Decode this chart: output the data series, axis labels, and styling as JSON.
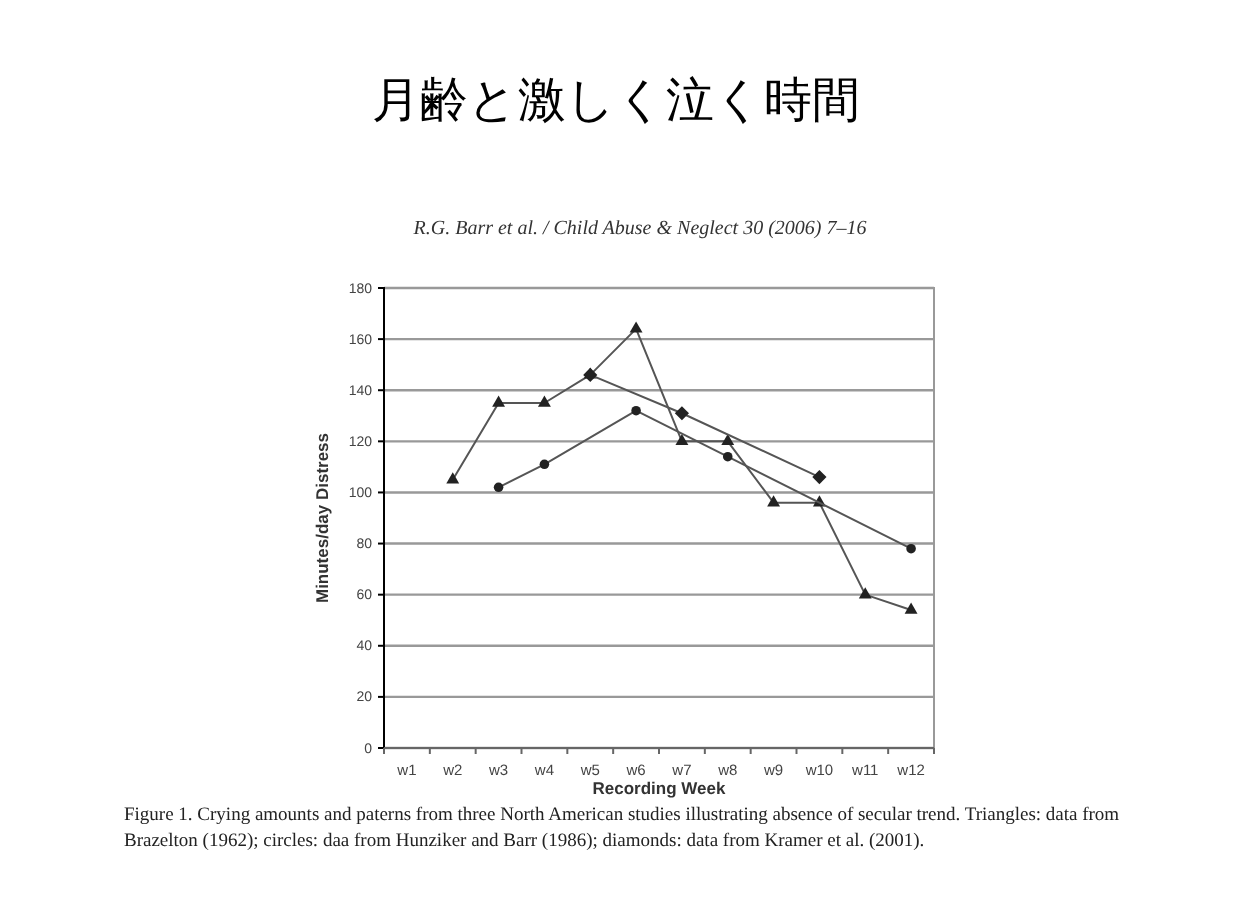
{
  "chart_data": {
    "type": "line",
    "title": "月齢と激しく泣く時間",
    "subtitle": "R.G. Barr et al. / Child Abuse & Neglect 30 (2006) 7–16",
    "xlabel": "Recording Week",
    "ylabel": "Minutes/day Distress",
    "categories": [
      "w1",
      "w2",
      "w3",
      "w4",
      "w5",
      "w6",
      "w7",
      "w8",
      "w9",
      "w10",
      "w11",
      "w12"
    ],
    "series": [
      {
        "color": "#555555",
        "marker": "triangle",
        "values": [
          null,
          105,
          135,
          135,
          146,
          164,
          120,
          120,
          96,
          96,
          60,
          54
        ]
      },
      {
        "color": "#555555",
        "marker": "circle",
        "values": [
          null,
          null,
          102,
          111,
          null,
          132,
          null,
          114,
          null,
          null,
          null,
          78
        ]
      },
      {
        "color": "#555555",
        "marker": "diamond",
        "values": [
          null,
          null,
          null,
          null,
          146,
          null,
          131,
          null,
          null,
          106,
          null,
          null
        ]
      }
    ],
    "ylim": [
      0,
      180
    ],
    "yticks": [
      0,
      20,
      40,
      60,
      80,
      100,
      120,
      140,
      160,
      180
    ],
    "grid": "y",
    "annotations": [
      "Figure 1. Crying amounts and paterns from three North American studies illustrating absence of secular trend. Triangles: data from Brazelton (1962); circles: daa from Hunziker and Barr (1986); diamonds: data from Kramer et al. (2001)."
    ]
  }
}
